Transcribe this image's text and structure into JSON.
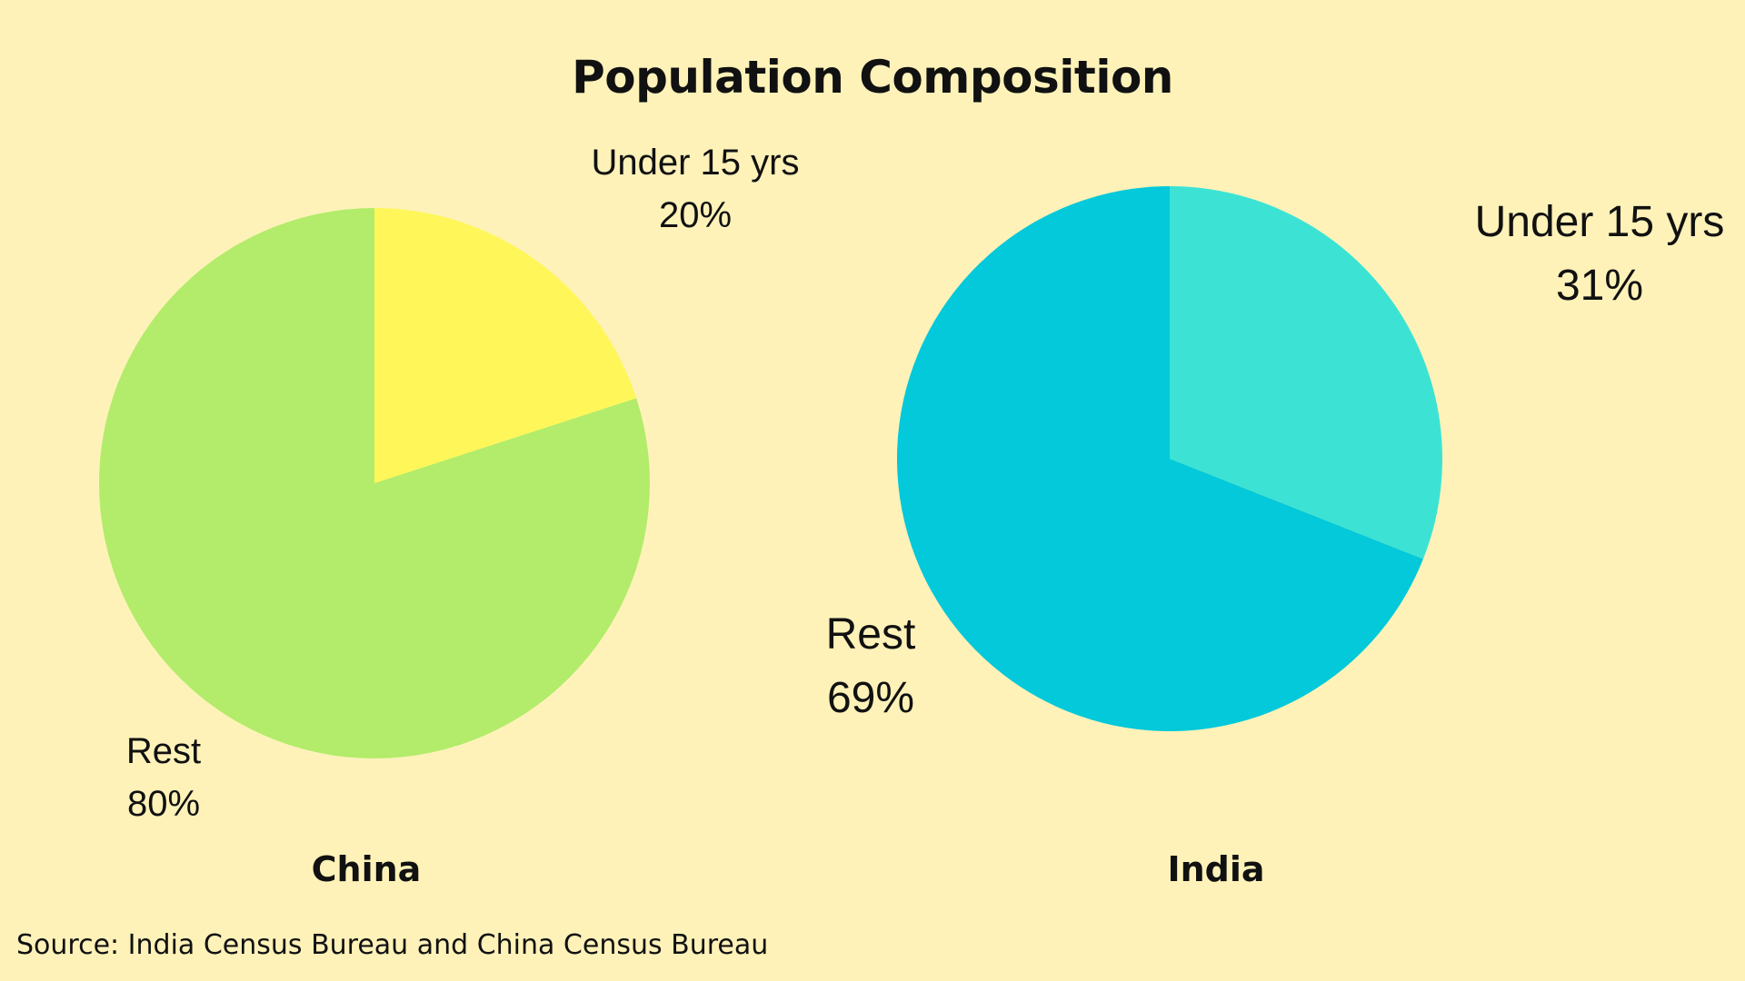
{
  "title": "Population Composition",
  "source": "Source: India Census Bureau and China Census Bureau",
  "colors": {
    "background": "#FEF2B9",
    "china_under15": "#FFF759",
    "china_rest": "#B2EC6A",
    "india_under15": "#3CE3D4",
    "india_rest": "#03C9DA"
  },
  "chart_data": [
    {
      "type": "pie",
      "title": "China",
      "slices": [
        {
          "label": "Under 15 yrs",
          "value": 20,
          "value_label": "20%"
        },
        {
          "label": "Rest",
          "value": 80,
          "value_label": "80%"
        }
      ]
    },
    {
      "type": "pie",
      "title": "India",
      "slices": [
        {
          "label": "Under 15 yrs",
          "value": 31,
          "value_label": "31%"
        },
        {
          "label": "Rest",
          "value": 69,
          "value_label": "69%"
        }
      ]
    }
  ]
}
